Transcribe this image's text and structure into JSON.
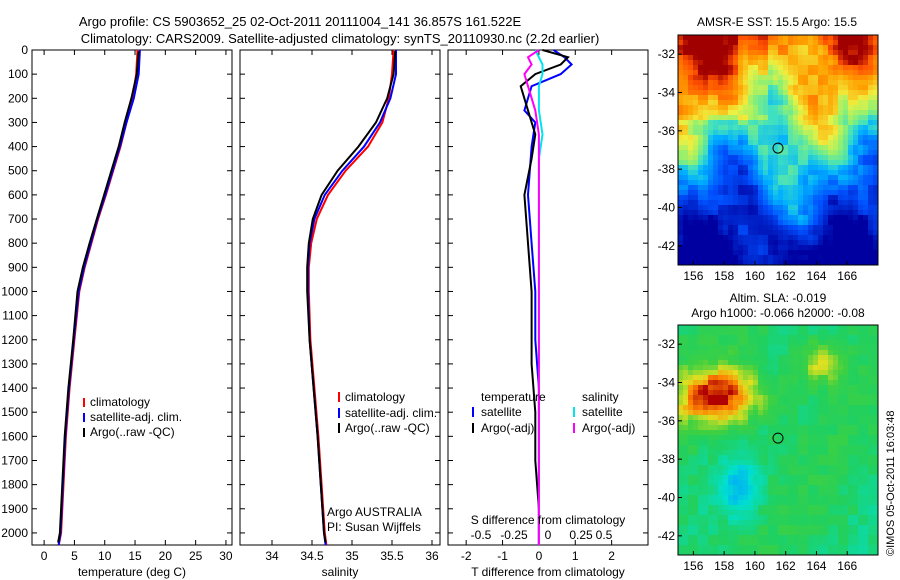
{
  "header": {
    "line1": "Argo profile: CS 5903652_25 02-Oct-2011 20111004_141 36.857S 161.522E",
    "line2": "Climatology: CARS2009. Satellite-adjusted climatology: synTS_20110930.nc (2.2d earlier)"
  },
  "colors": {
    "climatology": "#ff0000",
    "satellite": "#0000ff",
    "argo": "#000000",
    "sal_satellite": "#00e5ee",
    "sal_argo": "#ff00ff"
  },
  "chart_data": [
    {
      "type": "line",
      "id": "temperature",
      "xlabel": "temperature (deg C)",
      "xlim": [
        -2,
        31
      ],
      "ylim": [
        2050,
        0
      ],
      "xticks": [
        0,
        5,
        10,
        15,
        20,
        25,
        30
      ],
      "yticks": [
        0,
        100,
        200,
        300,
        400,
        500,
        600,
        700,
        800,
        900,
        1000,
        1100,
        1200,
        1300,
        1400,
        1500,
        1600,
        1700,
        1800,
        1900,
        2000
      ],
      "legend": [
        "climatology",
        "satellite-adj. clim.",
        "Argo(..raw -QC)"
      ],
      "series": [
        {
          "name": "climatology",
          "color": "#ff0000",
          "x": [
            15.4,
            15.2,
            14.6,
            13.6,
            12.6,
            11.4,
            10.2,
            8.9,
            7.8,
            6.7,
            5.8,
            5.0,
            4.2,
            3.6,
            3.2,
            2.8,
            2.4
          ],
          "y": [
            0,
            100,
            200,
            300,
            400,
            500,
            600,
            700,
            800,
            900,
            1000,
            1200,
            1400,
            1600,
            1800,
            2000,
            2050
          ]
        },
        {
          "name": "satellite-adj. clim.",
          "color": "#0000ff",
          "x": [
            15.8,
            15.6,
            14.8,
            13.6,
            12.5,
            11.3,
            10.1,
            8.8,
            7.7,
            6.6,
            5.7,
            4.9,
            4.1,
            3.5,
            3.1,
            2.7,
            2.4
          ],
          "y": [
            0,
            100,
            200,
            300,
            400,
            500,
            600,
            700,
            800,
            900,
            1000,
            1200,
            1400,
            1600,
            1800,
            2000,
            2050
          ]
        },
        {
          "name": "Argo(..raw -QC)",
          "color": "#000000",
          "x": [
            15.6,
            15.3,
            14.4,
            13.3,
            12.3,
            11.1,
            9.9,
            8.7,
            7.5,
            6.4,
            5.5,
            4.8,
            4.0,
            3.4,
            3.0,
            2.6,
            2.3
          ],
          "y": [
            5,
            100,
            200,
            300,
            400,
            500,
            600,
            700,
            800,
            900,
            1000,
            1200,
            1400,
            1600,
            1800,
            2000,
            2040
          ]
        }
      ]
    },
    {
      "type": "line",
      "id": "salinity",
      "xlabel": "salinity",
      "xlim": [
        33.6,
        36.1
      ],
      "ylim": [
        2050,
        0
      ],
      "xticks": [
        34,
        34.5,
        35,
        35.5,
        36
      ],
      "legend": [
        "climatology",
        "satellite-adj. clim.",
        "Argo(..raw -QC)"
      ],
      "annotation": [
        "Argo AUSTRALIA",
        "PI: Susan Wijffels"
      ],
      "series": [
        {
          "name": "climatology",
          "color": "#ff0000",
          "x": [
            35.52,
            35.5,
            35.46,
            35.38,
            35.2,
            34.92,
            34.7,
            34.56,
            34.49,
            34.46,
            34.46,
            34.48,
            34.53,
            34.58,
            34.62,
            34.66,
            34.68
          ],
          "y": [
            0,
            100,
            200,
            300,
            400,
            500,
            600,
            700,
            800,
            900,
            1000,
            1200,
            1400,
            1600,
            1800,
            2000,
            2050
          ]
        },
        {
          "name": "satellite-adj. clim.",
          "color": "#0000ff",
          "x": [
            35.55,
            35.55,
            35.48,
            35.35,
            35.15,
            34.88,
            34.66,
            34.53,
            34.47,
            34.45,
            34.45,
            34.47,
            34.52,
            34.57,
            34.61,
            34.65,
            34.67
          ],
          "y": [
            0,
            100,
            200,
            300,
            400,
            500,
            600,
            700,
            800,
            900,
            1000,
            1200,
            1400,
            1600,
            1800,
            2000,
            2050
          ]
        },
        {
          "name": "Argo(..raw -QC)",
          "color": "#000000",
          "x": [
            35.54,
            35.52,
            35.44,
            35.3,
            35.08,
            34.82,
            34.62,
            34.51,
            34.46,
            34.44,
            34.44,
            34.47,
            34.52,
            34.57,
            34.61,
            34.65,
            34.67
          ],
          "y": [
            5,
            100,
            200,
            300,
            400,
            500,
            600,
            700,
            800,
            900,
            1000,
            1200,
            1400,
            1600,
            1800,
            2000,
            2040
          ]
        }
      ]
    },
    {
      "type": "line",
      "id": "difference",
      "xlabel": "T difference from climatology",
      "top_label": "S difference from climatology",
      "xlim": [
        -2.5,
        3
      ],
      "ylim": [
        2050,
        0
      ],
      "xticks": [
        -2,
        -1,
        0,
        1,
        2
      ],
      "top_ticks": [
        "-0.5",
        "-0.25",
        "0",
        "0.25",
        "0.5"
      ],
      "legend_t_title": "temperature",
      "legend_s_title": "salinity",
      "legend_t": [
        "satellite",
        "Argo(-adj)"
      ],
      "legend_s": [
        "satellite",
        "Argo(-adj)"
      ],
      "series": [
        {
          "name": "satellite",
          "color": "#0000ff",
          "x": [
            0.4,
            0.7,
            0.9,
            0.6,
            -0.2,
            -0.4,
            -0.1,
            -0.2,
            -0.3,
            -0.2,
            -0.1,
            -0.1,
            0,
            0,
            0,
            0,
            0
          ],
          "y": [
            0,
            30,
            60,
            100,
            150,
            250,
            300,
            400,
            600,
            800,
            1000,
            1200,
            1400,
            1600,
            1800,
            2000,
            2050
          ]
        },
        {
          "name": "Argo(-adj)",
          "color": "#000000",
          "x": [
            0.1,
            0.8,
            0.6,
            -0.1,
            -0.5,
            -0.3,
            -0.1,
            -0.2,
            -0.4,
            -0.3,
            -0.2,
            -0.2,
            -0.2,
            -0.1,
            -0.1,
            0,
            0
          ],
          "y": [
            0,
            30,
            60,
            100,
            150,
            250,
            350,
            450,
            600,
            800,
            1000,
            1200,
            1300,
            1500,
            1700,
            1900,
            2050
          ]
        },
        {
          "name": "satellite",
          "color": "#00e5ee",
          "x": [
            -0.1,
            0.0,
            0.1,
            0.1,
            0.0,
            0.0,
            0.1,
            0.0,
            0.0,
            0.0,
            0.0,
            0.0,
            0.0,
            0.0,
            0.0,
            0.0,
            0.0
          ],
          "y": [
            0,
            30,
            60,
            100,
            150,
            250,
            350,
            450,
            600,
            800,
            1000,
            1200,
            1400,
            1600,
            1800,
            2000,
            2050
          ]
        },
        {
          "name": "Argo(-adj)",
          "color": "#ff00ff",
          "x": [
            0.0,
            -0.3,
            -0.2,
            -0.4,
            -0.3,
            -0.1,
            0.0,
            0.0,
            0.0,
            0.0,
            0.0,
            0.0,
            0.0,
            0.0,
            0.0,
            0.0,
            0.0
          ],
          "y": [
            0,
            30,
            60,
            100,
            150,
            250,
            350,
            450,
            600,
            800,
            1000,
            1200,
            1400,
            1600,
            1800,
            2000,
            2050
          ]
        }
      ]
    },
    {
      "type": "heatmap",
      "id": "sst_map",
      "title": "AMSR-E SST: 15.5 Argo: 15.5",
      "xlim": [
        155,
        168
      ],
      "ylim": [
        -43,
        -31
      ],
      "xticks": [
        156,
        158,
        160,
        162,
        164,
        166
      ],
      "yticks": [
        -32,
        -34,
        -36,
        -38,
        -40,
        -42
      ],
      "marker": {
        "x": 161.5,
        "y": -36.9
      }
    },
    {
      "type": "heatmap",
      "id": "sla_map",
      "title": [
        "Altim. SLA: -0.019",
        "Argo h1000: -0.066 h2000: -0.08"
      ],
      "xlim": [
        155,
        168
      ],
      "ylim": [
        -43,
        -31
      ],
      "xticks": [
        156,
        158,
        160,
        162,
        164,
        166
      ],
      "yticks": [
        -32,
        -34,
        -36,
        -38,
        -40,
        -42
      ],
      "marker": {
        "x": 161.5,
        "y": -36.9
      }
    }
  ],
  "footer_note": "©IMOS 05-Oct-2011 16:03:48"
}
